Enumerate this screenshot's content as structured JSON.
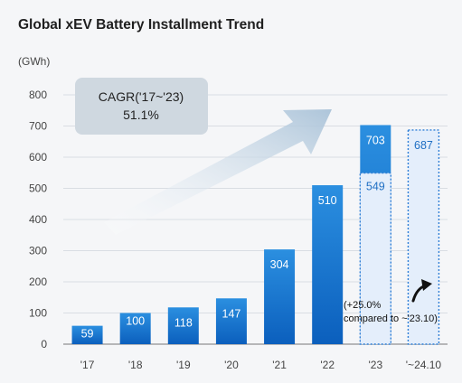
{
  "title": "Global xEV Battery Installment Trend",
  "unit": "(GWh)",
  "colors": {
    "bar_top": "#2b8fe0",
    "bar_bottom": "#0b5fbd",
    "ghost_fill": "#e4eefb",
    "ghost_stroke": "#2f7fd6",
    "ghost_text": "#1f6fc4",
    "grid": "#d9dde3",
    "axis": "#777777",
    "cagr_box": "#cfd8e0"
  },
  "icons": {
    "growth_arrow": "trend-arrow-icon",
    "curved_arrow": "curved-up-arrow-icon"
  },
  "chart_data": {
    "type": "bar",
    "categories": [
      "'17",
      "'18",
      "'19",
      "'20",
      "'21",
      "'22",
      "'23",
      "'~24.10"
    ],
    "ylabel": "(GWh)",
    "ylim": [
      0,
      800
    ],
    "yticks": [
      0,
      100,
      200,
      300,
      400,
      500,
      600,
      700,
      800
    ],
    "grid": true,
    "series": [
      {
        "values": [
          59,
          100,
          118,
          147,
          304,
          510,
          703,
          null
        ]
      }
    ],
    "comparison": {
      "category": "'23",
      "value": 549,
      "note": "through Oct '23"
    },
    "ytd_2024": {
      "category": "'~24.10",
      "value": 687
    },
    "annotations": {
      "cagr_title": "CAGR('17~'23)",
      "cagr_value": "51.1%",
      "growth_line1": "(+25.0%",
      "growth_line2": "compared to ~'23.10)"
    }
  }
}
